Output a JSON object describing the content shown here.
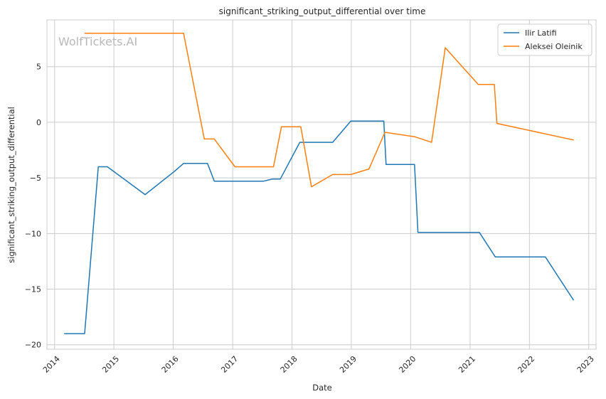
{
  "chart_data": {
    "type": "line",
    "title": "significant_striking_output_differential over time",
    "xlabel": "Date",
    "ylabel": "significant_striking_output_differential",
    "watermark": "WolfTickets.AI",
    "x_range": [
      "2013-11-15",
      "2023-02-15"
    ],
    "ylim": [
      -20.4,
      9.2
    ],
    "x_ticks": [
      "2014",
      "2015",
      "2016",
      "2017",
      "2018",
      "2019",
      "2020",
      "2021",
      "2022",
      "2023"
    ],
    "y_ticks": [
      -20,
      -15,
      -10,
      -5,
      0,
      5
    ],
    "y_tick_labels": [
      "−20",
      "−15",
      "−10",
      "−5",
      "0",
      "5"
    ],
    "grid": true,
    "legend_position": "top-right",
    "colors": {
      "Ilir Latifi": "#1f77b4",
      "Aleksei Oleinik": "#ff7f0e",
      "grid": "#cccccc",
      "frame": "#cccccc"
    },
    "series": [
      {
        "name": "Ilir Latifi",
        "x": [
          "2014-03-01",
          "2014-07-05",
          "2014-09-27",
          "2014-11-22",
          "2015-07-12",
          "2016-01-10",
          "2016-03-05",
          "2016-07-30",
          "2016-09-10",
          "2017-07-08",
          "2017-09-02",
          "2017-10-21",
          "2018-02-18",
          "2018-09-08",
          "2018-12-29",
          "2019-07-20",
          "2019-08-03",
          "2020-01-25",
          "2020-02-15",
          "2021-02-27",
          "2021-06-05",
          "2022-04-09",
          "2022-09-30"
        ],
        "y": [
          -19.0,
          -19.0,
          -4.0,
          -4.0,
          -6.5,
          -4.4,
          -3.7,
          -3.7,
          -5.3,
          -5.3,
          -5.1,
          -5.1,
          -1.8,
          -1.8,
          0.1,
          0.1,
          -3.8,
          -3.8,
          -9.9,
          -9.9,
          -12.1,
          -12.1,
          -16.0
        ]
      },
      {
        "name": "Aleksei Oleinik",
        "x": [
          "2014-07-05",
          "2016-03-05",
          "2016-07-10",
          "2016-09-10",
          "2017-01-15",
          "2017-09-09",
          "2017-10-28",
          "2018-02-24",
          "2018-05-01",
          "2018-09-08",
          "2018-12-29",
          "2019-04-20",
          "2019-07-27",
          "2020-01-25",
          "2020-05-09",
          "2020-08-01",
          "2021-02-20",
          "2021-05-30",
          "2021-06-15",
          "2022-10-01"
        ],
        "y": [
          8.0,
          8.0,
          -1.5,
          -1.5,
          -4.0,
          -4.0,
          -0.4,
          -0.4,
          -5.8,
          -4.7,
          -4.7,
          -4.2,
          -0.9,
          -1.3,
          -1.8,
          6.7,
          3.4,
          3.4,
          -0.1,
          -1.6
        ]
      }
    ]
  }
}
